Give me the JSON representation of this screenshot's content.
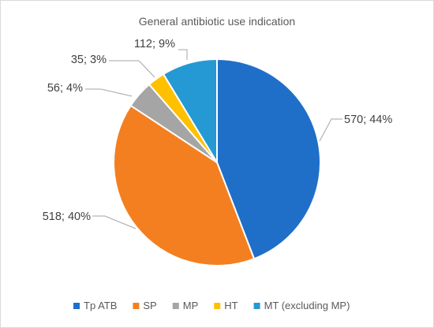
{
  "chart_data": {
    "type": "pie",
    "title": "General antibiotic use indication",
    "start_angle_deg": 0,
    "direction": "clockwise",
    "categories": [
      "Tp ATB",
      "SP",
      "MP",
      "HT",
      "MT (excluding MP)"
    ],
    "values": [
      570,
      518,
      56,
      35,
      112
    ],
    "percent_labels": [
      "44%",
      "40%",
      "4%",
      "3%",
      "9%"
    ],
    "data_labels": [
      "570; 44%",
      "518; 40%",
      "56; 4%",
      "35; 3%",
      "112; 9%"
    ],
    "colors": [
      "#1f6fc9",
      "#f47f20",
      "#a5a5a5",
      "#ffc000",
      "#2599d4"
    ],
    "legend_position": "bottom"
  }
}
